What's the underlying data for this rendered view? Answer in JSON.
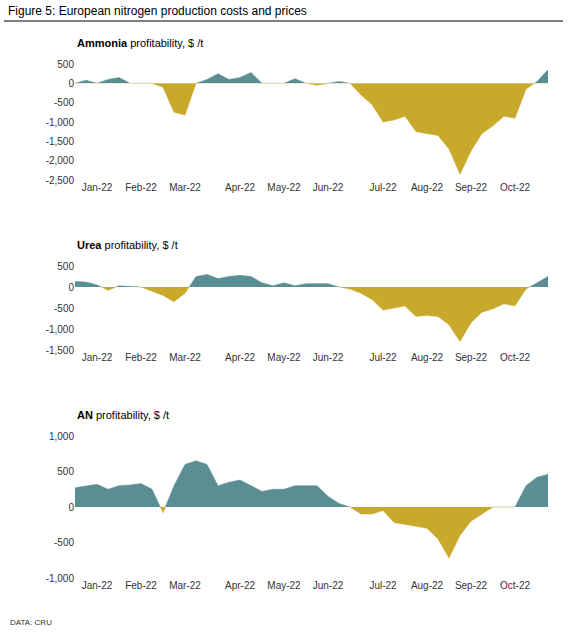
{
  "title": "Figure 5: European nitrogen production costs and prices",
  "source": "DATA: CRU",
  "chart_data": [
    {
      "type": "area",
      "title": "Ammonia profitability, $ /t",
      "categories": [
        null,
        null,
        "Jan-22",
        null,
        null,
        null,
        "Feb-22",
        null,
        null,
        null,
        "Mar-22",
        null,
        null,
        null,
        null,
        "Apr-22",
        null,
        null,
        null,
        "May-22",
        null,
        null,
        null,
        "Jun-22",
        null,
        null,
        null,
        null,
        "Jul-22",
        null,
        null,
        null,
        "Aug-22",
        null,
        null,
        null,
        "Sep-22",
        null,
        null,
        null,
        "Oct-22",
        null,
        null,
        null
      ],
      "values": [
        0,
        80,
        0,
        100,
        150,
        0,
        0,
        0,
        -100,
        -750,
        -820,
        0,
        100,
        250,
        100,
        150,
        280,
        0,
        0,
        0,
        120,
        0,
        -50,
        0,
        50,
        0,
        -300,
        -550,
        -1000,
        -950,
        -850,
        -1250,
        -1300,
        -1350,
        -1700,
        -2350,
        -1750,
        -1300,
        -1100,
        -850,
        -900,
        -150,
        50,
        350
      ],
      "colors": [
        "#5b8e93",
        "#c9a92c"
      ],
      "ylim": [
        -2500,
        500
      ],
      "yticks": [
        {
          "value": -2500,
          "label": "-2,500"
        },
        {
          "value": -2000,
          "label": "-2,000"
        },
        {
          "value": -1500,
          "label": "-1,500"
        },
        {
          "value": -1000,
          "label": "-1,000"
        },
        -500,
        0,
        500
      ],
      "grid": false
    },
    {
      "type": "area",
      "title": "Urea profitability, $ /t",
      "categories": [
        null,
        null,
        "Jan-22",
        null,
        null,
        null,
        "Feb-22",
        null,
        null,
        null,
        "Mar-22",
        null,
        null,
        null,
        null,
        "Apr-22",
        null,
        null,
        null,
        "May-22",
        null,
        null,
        null,
        "Jun-22",
        null,
        null,
        null,
        null,
        "Jul-22",
        null,
        null,
        null,
        "Aug-22",
        null,
        null,
        null,
        "Sep-22",
        null,
        null,
        null,
        "Oct-22",
        null,
        null,
        null
      ],
      "values": [
        130,
        120,
        50,
        -80,
        30,
        20,
        0,
        -100,
        -200,
        -350,
        -150,
        250,
        300,
        200,
        250,
        280,
        250,
        100,
        30,
        100,
        30,
        80,
        80,
        80,
        0,
        -50,
        -150,
        -300,
        -550,
        -500,
        -450,
        -700,
        -680,
        -700,
        -900,
        -1300,
        -850,
        -600,
        -520,
        -400,
        -450,
        -50,
        100,
        250
      ],
      "colors": [
        "#5b8e93",
        "#c9a92c"
      ],
      "ylim": [
        -1500,
        500
      ],
      "yticks": [
        {
          "value": -1500,
          "label": "-1,500"
        },
        {
          "value": -1000,
          "label": "-1,000"
        },
        -500,
        0,
        500
      ],
      "grid": false
    },
    {
      "type": "area",
      "title": "AN profitability, $ /t",
      "categories": [
        null,
        null,
        "Jan-22",
        null,
        null,
        null,
        "Feb-22",
        null,
        null,
        null,
        "Mar-22",
        null,
        null,
        null,
        null,
        "Apr-22",
        null,
        null,
        null,
        "May-22",
        null,
        null,
        null,
        "Jun-22",
        null,
        null,
        null,
        null,
        "Jul-22",
        null,
        null,
        null,
        "Aug-22",
        null,
        null,
        null,
        "Sep-22",
        null,
        null,
        null,
        "Oct-22",
        null,
        null,
        null
      ],
      "values": [
        270,
        300,
        320,
        250,
        300,
        310,
        330,
        250,
        -80,
        300,
        600,
        650,
        600,
        300,
        350,
        380,
        300,
        220,
        250,
        250,
        300,
        300,
        300,
        150,
        50,
        0,
        -100,
        -100,
        -50,
        -220,
        -250,
        -280,
        -300,
        -450,
        -720,
        -400,
        -200,
        -100,
        0,
        0,
        0,
        300,
        420,
        460
      ],
      "colors": [
        "#5b8e93",
        "#c9a92c"
      ],
      "ylim": [
        -1000,
        1000
      ],
      "yticks": [
        {
          "value": -1000,
          "label": "-1,000"
        },
        -500,
        0,
        500,
        {
          "value": 1000,
          "label": "1,000"
        }
      ],
      "grid": false
    }
  ]
}
